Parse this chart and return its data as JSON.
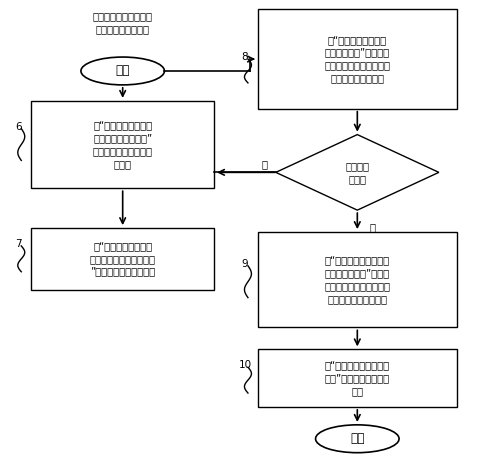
{
  "bg_color": "#ffffff",
  "border_color": "#000000",
  "text_color": "#000000",
  "title_text": "已经获得优选发芽试验\n的种子发芽条件数据",
  "start_text": "开始",
  "end_text": "结束",
  "box6_text": "在“优选方案样本试验\n参数及任务设置单元”\n设置样本实验的控制条\n件参数",
  "box7_text": "在“优选方案样本试验\n参数实时显示及查询单元\n”获取试验实时数据信息",
  "box8_text": "在“优选方案样本试验\n统计决策单元”获取试验\n发芽势、发芽率和控制条\n件信息，以进行研究",
  "diamond_text": "是否增加\n试验？",
  "yes_text": "是",
  "no_text": "否",
  "box9_text": "在“优选方案样本试验样\n本检验决策单元”进行样\n本数对发芽势及发芽率的\n影响的显著性差异分析",
  "box10_text": "在“样本试验总结及查询\n单元”记录试验经验以待\n查阅",
  "label6": "6",
  "label7": "7",
  "label8": "8",
  "label9": "9",
  "label10": "10",
  "font_size": 7.2,
  "font_family": "SimHei"
}
